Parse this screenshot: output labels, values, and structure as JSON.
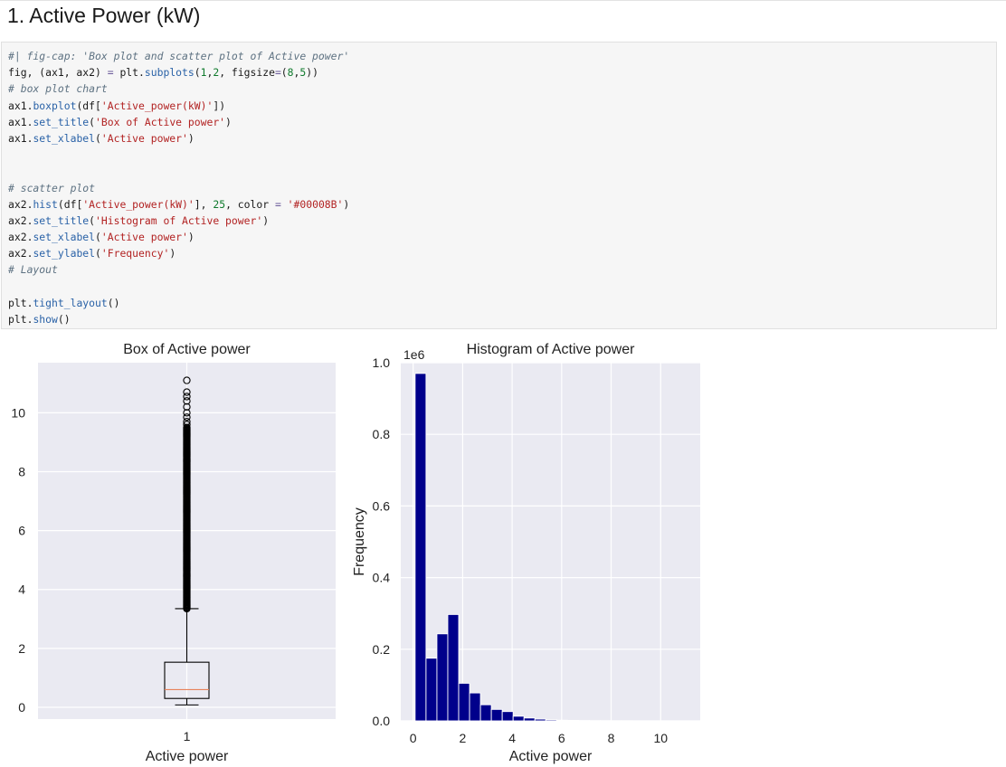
{
  "heading": "1. Active Power (kW)",
  "code_lines": [
    [
      {
        "c": "comment",
        "t": "#| fig-cap: 'Box plot and scatter plot of Active power'"
      }
    ],
    [
      {
        "c": "plain",
        "t": "fig, (ax1, ax2) "
      },
      {
        "c": "op",
        "t": "="
      },
      {
        "c": "plain",
        "t": " plt."
      },
      {
        "c": "fn",
        "t": "subplots"
      },
      {
        "c": "plain",
        "t": "("
      },
      {
        "c": "num",
        "t": "1"
      },
      {
        "c": "plain",
        "t": ","
      },
      {
        "c": "num",
        "t": "2"
      },
      {
        "c": "plain",
        "t": ", figsize"
      },
      {
        "c": "op",
        "t": "="
      },
      {
        "c": "plain",
        "t": "("
      },
      {
        "c": "num",
        "t": "8"
      },
      {
        "c": "plain",
        "t": ","
      },
      {
        "c": "num",
        "t": "5"
      },
      {
        "c": "plain",
        "t": "))"
      }
    ],
    [
      {
        "c": "comment",
        "t": "# box plot chart"
      }
    ],
    [
      {
        "c": "plain",
        "t": "ax1."
      },
      {
        "c": "fn",
        "t": "boxplot"
      },
      {
        "c": "plain",
        "t": "(df["
      },
      {
        "c": "str",
        "t": "'Active_power(kW)'"
      },
      {
        "c": "plain",
        "t": "])"
      }
    ],
    [
      {
        "c": "plain",
        "t": "ax1."
      },
      {
        "c": "fn",
        "t": "set_title"
      },
      {
        "c": "plain",
        "t": "("
      },
      {
        "c": "str",
        "t": "'Box of Active power'"
      },
      {
        "c": "plain",
        "t": ")"
      }
    ],
    [
      {
        "c": "plain",
        "t": "ax1."
      },
      {
        "c": "fn",
        "t": "set_xlabel"
      },
      {
        "c": "plain",
        "t": "("
      },
      {
        "c": "str",
        "t": "'Active power'"
      },
      {
        "c": "plain",
        "t": ")"
      }
    ],
    [],
    [],
    [
      {
        "c": "comment",
        "t": "# scatter plot"
      }
    ],
    [
      {
        "c": "plain",
        "t": "ax2."
      },
      {
        "c": "fn",
        "t": "hist"
      },
      {
        "c": "plain",
        "t": "(df["
      },
      {
        "c": "str",
        "t": "'Active_power(kW)'"
      },
      {
        "c": "plain",
        "t": "], "
      },
      {
        "c": "num",
        "t": "25"
      },
      {
        "c": "plain",
        "t": ", color "
      },
      {
        "c": "op",
        "t": "="
      },
      {
        "c": "plain",
        "t": " "
      },
      {
        "c": "str",
        "t": "'#00008B'"
      },
      {
        "c": "plain",
        "t": ")"
      }
    ],
    [
      {
        "c": "plain",
        "t": "ax2."
      },
      {
        "c": "fn",
        "t": "set_title"
      },
      {
        "c": "plain",
        "t": "("
      },
      {
        "c": "str",
        "t": "'Histogram of Active power'"
      },
      {
        "c": "plain",
        "t": ")"
      }
    ],
    [
      {
        "c": "plain",
        "t": "ax2."
      },
      {
        "c": "fn",
        "t": "set_xlabel"
      },
      {
        "c": "plain",
        "t": "("
      },
      {
        "c": "str",
        "t": "'Active power'"
      },
      {
        "c": "plain",
        "t": ")"
      }
    ],
    [
      {
        "c": "plain",
        "t": "ax2."
      },
      {
        "c": "fn",
        "t": "set_ylabel"
      },
      {
        "c": "plain",
        "t": "("
      },
      {
        "c": "str",
        "t": "'Frequency'"
      },
      {
        "c": "plain",
        "t": ")"
      }
    ],
    [
      {
        "c": "comment",
        "t": "# Layout"
      }
    ],
    [],
    [
      {
        "c": "plain",
        "t": "plt."
      },
      {
        "c": "fn",
        "t": "tight_layout"
      },
      {
        "c": "plain",
        "t": "()"
      }
    ],
    [
      {
        "c": "plain",
        "t": "plt."
      },
      {
        "c": "fn",
        "t": "show"
      },
      {
        "c": "plain",
        "t": "()"
      }
    ]
  ],
  "chart_data": [
    {
      "type": "box",
      "title": "Box of Active power",
      "xlabel": "Active power",
      "ylabel": "",
      "categories": [
        "1"
      ],
      "ylim": [
        -0.4,
        11.7
      ],
      "yticks": [
        0,
        2,
        4,
        6,
        8,
        10
      ],
      "box": {
        "whisker_low": 0.08,
        "q1": 0.3,
        "median": 0.6,
        "q3": 1.53,
        "whisker_high": 3.35
      },
      "outliers_dense_range": [
        3.35,
        9.5
      ],
      "outliers_sparse": [
        9.6,
        9.7,
        9.85,
        10.0,
        10.2,
        10.4,
        10.55,
        10.7,
        11.1
      ],
      "median_color": "#e8825a",
      "grid": true,
      "background": "#eaeaf2"
    },
    {
      "type": "bar",
      "title": "Histogram of Active power",
      "xlabel": "Active power",
      "ylabel": "Frequency",
      "y_offset_text": "1e6",
      "xlim": [
        -0.5,
        11.6
      ],
      "ylim": [
        0,
        1.0
      ],
      "xticks": [
        0,
        2,
        4,
        6,
        8,
        10
      ],
      "yticks": [
        0.0,
        0.2,
        0.4,
        0.6,
        0.8,
        1.0
      ],
      "bin_width": 0.44,
      "bin_start": 0.08,
      "values": [
        0.97,
        0.175,
        0.243,
        0.297,
        0.105,
        0.078,
        0.045,
        0.032,
        0.026,
        0.013,
        0.008,
        0.005,
        0.003,
        0.002,
        0.0015,
        0.001,
        0.0007,
        0.0005,
        0.0004,
        0.0003,
        0.0002,
        0.0002,
        0.0001,
        0.0001,
        0.0001
      ],
      "color": "#00008B",
      "grid": true,
      "background": "#eaeaf2"
    }
  ]
}
